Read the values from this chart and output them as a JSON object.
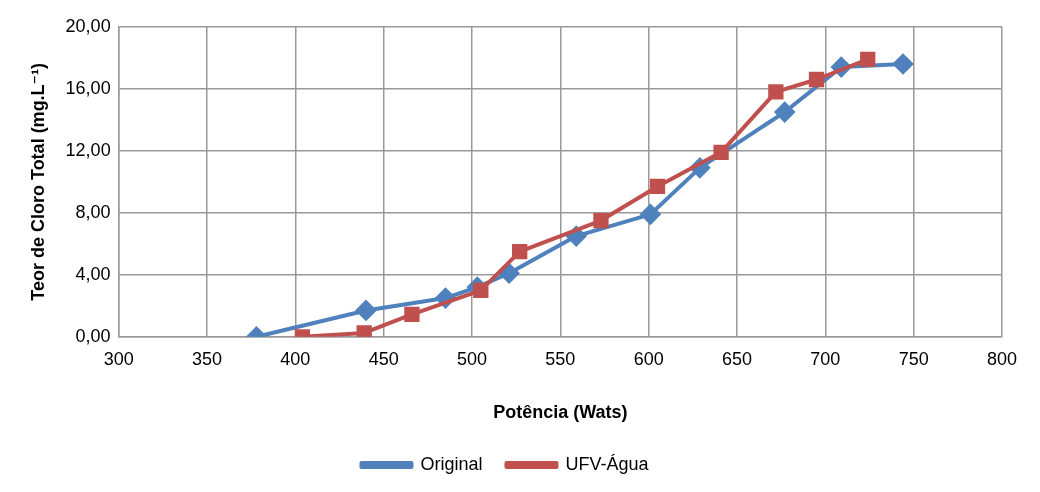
{
  "chart_data": {
    "type": "line",
    "xlabel": "Potência (Wats)",
    "ylabel": "Teor de Cloro Total (mg.L⁻¹)",
    "xlim": [
      300,
      800
    ],
    "xticks": [
      300,
      350,
      400,
      450,
      500,
      550,
      600,
      650,
      700,
      750,
      800
    ],
    "ylim": [
      0,
      20
    ],
    "yticks": [
      {
        "value": 0,
        "label": "0,00"
      },
      {
        "value": 4,
        "label": "4,00"
      },
      {
        "value": 8,
        "label": "8,00"
      },
      {
        "value": 12,
        "label": "12,00"
      },
      {
        "value": 16,
        "label": "16,00"
      },
      {
        "value": 20,
        "label": "20,00"
      }
    ],
    "grid": true,
    "legend": "bottom",
    "line_style": "solid",
    "series": [
      {
        "name": "Original",
        "color": "#4f81bd",
        "marker": "diamond",
        "x": [
          378,
          440,
          485,
          503,
          521,
          559,
          601,
          629,
          677,
          709,
          744
        ],
        "values": [
          0.0,
          1.7,
          2.5,
          3.2,
          4.1,
          6.5,
          7.9,
          10.9,
          14.5,
          17.4,
          17.6
        ]
      },
      {
        "name": "UFV-Água",
        "color": "#c0504d",
        "marker": "square",
        "x": [
          404,
          439,
          466,
          505,
          527,
          573,
          605,
          641,
          672,
          695,
          724
        ],
        "values": [
          0.0,
          0.25,
          1.45,
          3.0,
          5.5,
          7.5,
          9.7,
          11.9,
          15.8,
          16.6,
          17.9
        ]
      }
    ]
  }
}
